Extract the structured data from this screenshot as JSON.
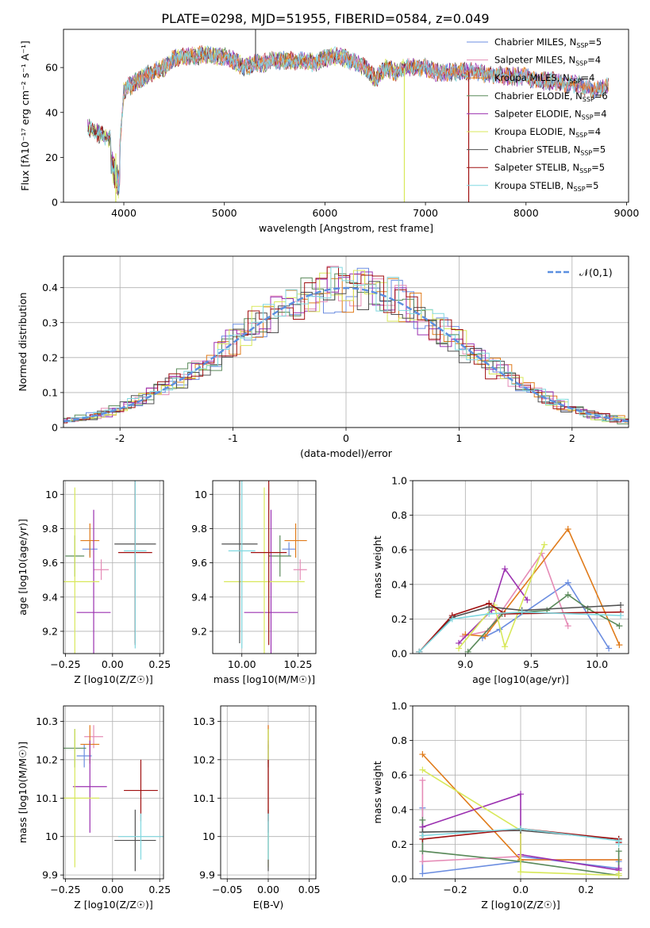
{
  "title": "PLATE=0298, MJD=51955, FIBERID=0584, z=0.049",
  "colors": [
    "#6b8de0",
    "#e58bb6",
    "#e07b1a",
    "#5a8a5a",
    "#9b30b0",
    "#d8e85a",
    "#505050",
    "#a01010",
    "#80d8e0"
  ],
  "legend": [
    {
      "base": "Chabrier MILES, N",
      "sub": "SSP",
      "n": "=5"
    },
    {
      "base": "Salpeter MILES, N",
      "sub": "SSP",
      "n": "=4"
    },
    {
      "base": "Kroupa MILES, N",
      "sub": "SSP",
      "n": "=4"
    },
    {
      "base": "Chabrier ELODIE, N",
      "sub": "SSP",
      "n": "=6"
    },
    {
      "base": "Salpeter ELODIE, N",
      "sub": "SSP",
      "n": "=4"
    },
    {
      "base": "Kroupa ELODIE, N",
      "sub": "SSP",
      "n": "=4"
    },
    {
      "base": "Chabrier STELIB, N",
      "sub": "SSP",
      "n": "=5"
    },
    {
      "base": "Salpeter STELIB, N",
      "sub": "SSP",
      "n": "=5"
    },
    {
      "base": "Kroupa STELIB, N",
      "sub": "SSP",
      "n": "=5"
    }
  ],
  "chart_data": [
    {
      "id": "spectrum",
      "type": "line",
      "xlabel": "wavelength [Angstrom, rest frame]",
      "ylabel": "Flux [fλ10⁻¹⁷ erg cm⁻² s⁻¹ A⁻¹]",
      "xlim": [
        3400,
        9020
      ],
      "ylim": [
        0,
        77
      ],
      "xticks": [
        4000,
        5000,
        6000,
        7000,
        8000,
        9000
      ],
      "yticks": [
        0,
        20,
        40,
        60
      ],
      "series_profile": {
        "x": [
          3640,
          3700,
          3780,
          3870,
          3950,
          4000,
          4100,
          4200,
          4300,
          4400,
          4500,
          4600,
          4700,
          4800,
          4900,
          5000,
          5100,
          5200,
          5300,
          5400,
          5500,
          5600,
          5700,
          5800,
          5900,
          6000,
          6100,
          6200,
          6300,
          6400,
          6500,
          6600,
          6700,
          6800,
          6900,
          7000,
          7100,
          7200,
          7300,
          7400,
          7500,
          7600,
          7700,
          7800,
          7900,
          8000,
          8100,
          8200,
          8300,
          8400,
          8500,
          8600,
          8700,
          8800,
          8820
        ],
        "y": [
          33,
          32,
          30,
          28,
          18,
          50,
          53,
          56,
          58,
          60,
          64,
          65,
          65,
          66,
          65,
          65,
          63,
          60,
          62,
          62,
          63,
          63,
          63,
          63,
          62,
          64,
          65,
          64,
          62,
          60,
          55,
          60,
          58,
          60,
          60,
          60,
          58,
          58,
          58,
          58,
          58,
          57,
          57,
          56,
          56,
          56,
          54,
          54,
          54,
          52,
          53,
          51,
          50,
          52,
          51
        ]
      },
      "endpoints": [
        [
          3910,
          8770
        ],
        [
          3930,
          8820
        ],
        [
          3960,
          8820
        ],
        [
          3640,
          7400
        ],
        [
          3640,
          8820
        ],
        [
          3640,
          6790
        ],
        [
          3640,
          8820
        ],
        [
          3640,
          8820
        ],
        [
          3640,
          8820
        ]
      ],
      "spikes": [
        [
          5310,
          77
        ],
        [
          3920,
          0
        ],
        [
          6790,
          0
        ],
        [
          7430,
          0
        ]
      ]
    },
    {
      "id": "residual_hist",
      "type": "histogram",
      "xlabel": "(data-model)/error",
      "ylabel": "Normed distribution",
      "xlim": [
        -2.5,
        2.5
      ],
      "ylim": [
        0,
        0.49
      ],
      "xticks": [
        -2,
        -1,
        0,
        1,
        2
      ],
      "yticks": [
        0.0,
        0.1,
        0.2,
        0.3,
        0.4
      ],
      "bin_width": 0.1,
      "reference_label": "𝒩(0,1)",
      "reference_color": "#5b8fe0"
    },
    {
      "id": "age_vs_Z",
      "type": "errorbar",
      "xlabel": "Z [log10(Z/Z☉)]",
      "ylabel": "age [log10(age/yr)]",
      "xlim": [
        -0.26,
        0.27
      ],
      "ylim": [
        9.07,
        10.08
      ],
      "xticks": [
        -0.25,
        0.0,
        0.25
      ],
      "xticklabels": [
        "−0.25",
        "0.00",
        "0.25"
      ],
      "yticks": [
        9.2,
        9.4,
        9.6,
        9.8,
        10.0
      ],
      "points": [
        [
          -0.12,
          0.04,
          9.68,
          0.04
        ],
        [
          -0.06,
          0.04,
          9.56,
          0.06
        ],
        [
          -0.12,
          0.05,
          9.73,
          0.1
        ],
        [
          -0.2,
          0.05,
          9.64,
          0.12
        ],
        [
          -0.1,
          0.09,
          9.31,
          0.6
        ],
        [
          -0.2,
          0.13,
          9.49,
          0.55
        ],
        [
          0.12,
          0.11,
          9.71,
          0.58
        ],
        [
          0.12,
          0.09,
          9.66,
          0.54
        ],
        [
          0.12,
          0.06,
          9.67,
          0.57
        ]
      ]
    },
    {
      "id": "age_vs_mass",
      "type": "errorbar",
      "xlabel": "mass [log10(M/M☉)]",
      "ylabel": "",
      "xlim": [
        9.87,
        10.33
      ],
      "ylim": [
        9.07,
        10.08
      ],
      "xticks": [
        10.0,
        10.25
      ],
      "xticklabels": [
        "10.00",
        "10.25"
      ],
      "yticks": [
        9.2,
        9.4,
        9.6,
        9.8,
        10.0
      ],
      "points": [
        [
          10.21,
          0.03,
          9.68,
          0.04
        ],
        [
          10.26,
          0.03,
          9.56,
          0.06
        ],
        [
          10.24,
          0.05,
          9.73,
          0.1
        ],
        [
          10.17,
          0.05,
          9.64,
          0.12
        ],
        [
          10.13,
          0.12,
          9.31,
          0.6
        ],
        [
          10.1,
          0.18,
          9.49,
          0.55
        ],
        [
          9.99,
          0.08,
          9.71,
          0.58
        ],
        [
          10.12,
          0.08,
          9.66,
          0.54
        ],
        [
          10.0,
          0.06,
          9.67,
          0.57
        ]
      ]
    },
    {
      "id": "mass_weight_vs_age",
      "type": "line",
      "xlabel": "age [log10(age/yr)]",
      "ylabel": "mass weight",
      "xlim": [
        8.6,
        10.24
      ],
      "ylim": [
        0,
        1
      ],
      "xticks": [
        9.0,
        9.5,
        10.0
      ],
      "xticklabels": [
        "9.0",
        "9.5",
        "10.0"
      ],
      "yticks": [
        0,
        0.2,
        0.4,
        0.6,
        0.8,
        1.0
      ],
      "yticklabels": [
        "0.0",
        "0.2",
        "0.4",
        "0.6",
        "0.8",
        "1.0"
      ],
      "series": [
        {
          "x": [
            9.13,
            9.26,
            9.78,
            10.09
          ],
          "y": [
            0.09,
            0.14,
            0.41,
            0.03
          ]
        },
        {
          "x": [
            8.98,
            9.17,
            9.58,
            9.78
          ],
          "y": [
            0.1,
            0.13,
            0.58,
            0.16
          ]
        },
        {
          "x": [
            9.0,
            9.15,
            9.78,
            10.17
          ],
          "y": [
            0.11,
            0.1,
            0.72,
            0.05
          ]
        },
        {
          "x": [
            9.02,
            9.28,
            9.62,
            9.78,
            9.93,
            10.17
          ],
          "y": [
            0.01,
            0.23,
            0.25,
            0.34,
            0.26,
            0.16
          ]
        },
        {
          "x": [
            8.95,
            9.2,
            9.3,
            9.47
          ],
          "y": [
            0.06,
            0.25,
            0.49,
            0.31
          ]
        },
        {
          "x": [
            8.95,
            9.22,
            9.3,
            9.6
          ],
          "y": [
            0.03,
            0.28,
            0.04,
            0.63
          ]
        },
        {
          "x": [
            8.65,
            8.9,
            9.18,
            9.43,
            10.18
          ],
          "y": [
            0.01,
            0.21,
            0.27,
            0.25,
            0.28
          ]
        },
        {
          "x": [
            8.65,
            8.9,
            9.18,
            9.3,
            10.18
          ],
          "y": [
            0.01,
            0.22,
            0.29,
            0.23,
            0.24
          ]
        },
        {
          "x": [
            8.65,
            8.9,
            9.18,
            9.43,
            10.18
          ],
          "y": [
            0.01,
            0.2,
            0.23,
            0.24,
            0.22
          ]
        }
      ]
    },
    {
      "id": "mass_vs_Z",
      "type": "errorbar",
      "xlabel": "Z [log10(Z/Z☉)]",
      "ylabel": "mass [log10(M/M☉)]",
      "xlim": [
        -0.26,
        0.27
      ],
      "ylim": [
        9.89,
        10.34
      ],
      "xticks": [
        -0.25,
        0.0,
        0.25
      ],
      "xticklabels": [
        "−0.25",
        "0.00",
        "0.25"
      ],
      "yticks": [
        9.9,
        10.0,
        10.1,
        10.2,
        10.3
      ],
      "points": [
        [
          -0.15,
          0.04,
          10.21,
          0.03
        ],
        [
          -0.1,
          0.05,
          10.26,
          0.03
        ],
        [
          -0.12,
          0.05,
          10.24,
          0.05
        ],
        [
          -0.2,
          0.06,
          10.23,
          0.05
        ],
        [
          -0.12,
          0.09,
          10.13,
          0.12
        ],
        [
          -0.2,
          0.13,
          10.1,
          0.18
        ],
        [
          0.12,
          0.11,
          9.99,
          0.08
        ],
        [
          0.15,
          0.09,
          10.12,
          0.08
        ],
        [
          0.15,
          0.12,
          10.0,
          0.06
        ]
      ]
    },
    {
      "id": "mass_vs_ebv",
      "type": "errorbar",
      "xlabel": "E(B-V)",
      "ylabel": "",
      "xlim": [
        -0.058,
        0.058
      ],
      "ylim": [
        9.89,
        10.34
      ],
      "xticks": [
        -0.05,
        0.0,
        0.05
      ],
      "xticklabels": [
        "−0.05",
        "0.00",
        "0.05"
      ],
      "yticks": [
        9.9,
        10.0,
        10.1,
        10.2,
        10.3
      ],
      "points": [
        [
          0,
          0,
          10.21,
          0.03
        ],
        [
          0,
          0,
          10.26,
          0.03
        ],
        [
          0,
          0,
          10.24,
          0.05
        ],
        [
          0,
          0,
          10.23,
          0.05
        ],
        [
          0,
          0,
          10.13,
          0.12
        ],
        [
          0,
          0,
          10.1,
          0.18
        ],
        [
          0,
          0,
          9.99,
          0.08
        ],
        [
          0,
          0,
          10.12,
          0.08
        ],
        [
          0,
          0,
          10.0,
          0.06
        ]
      ]
    },
    {
      "id": "mass_weight_vs_Z",
      "type": "line",
      "xlabel": "Z [log10(Z/Z☉)]",
      "ylabel": "mass weight",
      "xlim": [
        -0.33,
        0.33
      ],
      "ylim": [
        0,
        1
      ],
      "xticks": [
        -0.2,
        0.0,
        0.2
      ],
      "xticklabels": [
        "−0.2",
        "0.0",
        "0.2"
      ],
      "yticks": [
        0,
        0.2,
        0.4,
        0.6,
        0.8,
        1.0
      ],
      "yticklabels": [
        "0.0",
        "0.2",
        "0.4",
        "0.6",
        "0.8",
        "1.0"
      ],
      "series": [
        {
          "x": [
            -0.3,
            -0.3,
            0.0,
            0.0,
            0.3,
            0.3
          ],
          "y": [
            0.41,
            0.03,
            0.1,
            0.13,
            0.06,
            0.1
          ]
        },
        {
          "x": [
            -0.3,
            -0.3,
            0.0,
            0.0,
            0.3
          ],
          "y": [
            0.57,
            0.1,
            0.13,
            0.11,
            0.11
          ]
        },
        {
          "x": [
            -0.3,
            0.0,
            0.0,
            0.3
          ],
          "y": [
            0.72,
            0.11,
            0.11,
            0.11
          ]
        },
        {
          "x": [
            -0.3,
            -0.3,
            0.0,
            0.3,
            0.3
          ],
          "y": [
            0.34,
            0.16,
            0.1,
            0.02,
            0.16
          ]
        },
        {
          "x": [
            -0.3,
            0.0,
            0.0,
            0.3,
            0.3
          ],
          "y": [
            0.3,
            0.49,
            0.14,
            0.05,
            0.06
          ]
        },
        {
          "x": [
            -0.3,
            0.0,
            0.0,
            0.3,
            0.3
          ],
          "y": [
            0.63,
            0.28,
            0.04,
            0.02,
            0.03
          ]
        },
        {
          "x": [
            -0.3,
            0.0,
            0.3,
            0.3
          ],
          "y": [
            0.27,
            0.28,
            0.23,
            0.22
          ]
        },
        {
          "x": [
            -0.3,
            0.0,
            0.3,
            0.3
          ],
          "y": [
            0.23,
            0.29,
            0.23,
            0.21
          ]
        },
        {
          "x": [
            -0.3,
            0.0,
            0.3,
            0.3
          ],
          "y": [
            0.25,
            0.29,
            0.22,
            0.2
          ]
        }
      ]
    }
  ]
}
